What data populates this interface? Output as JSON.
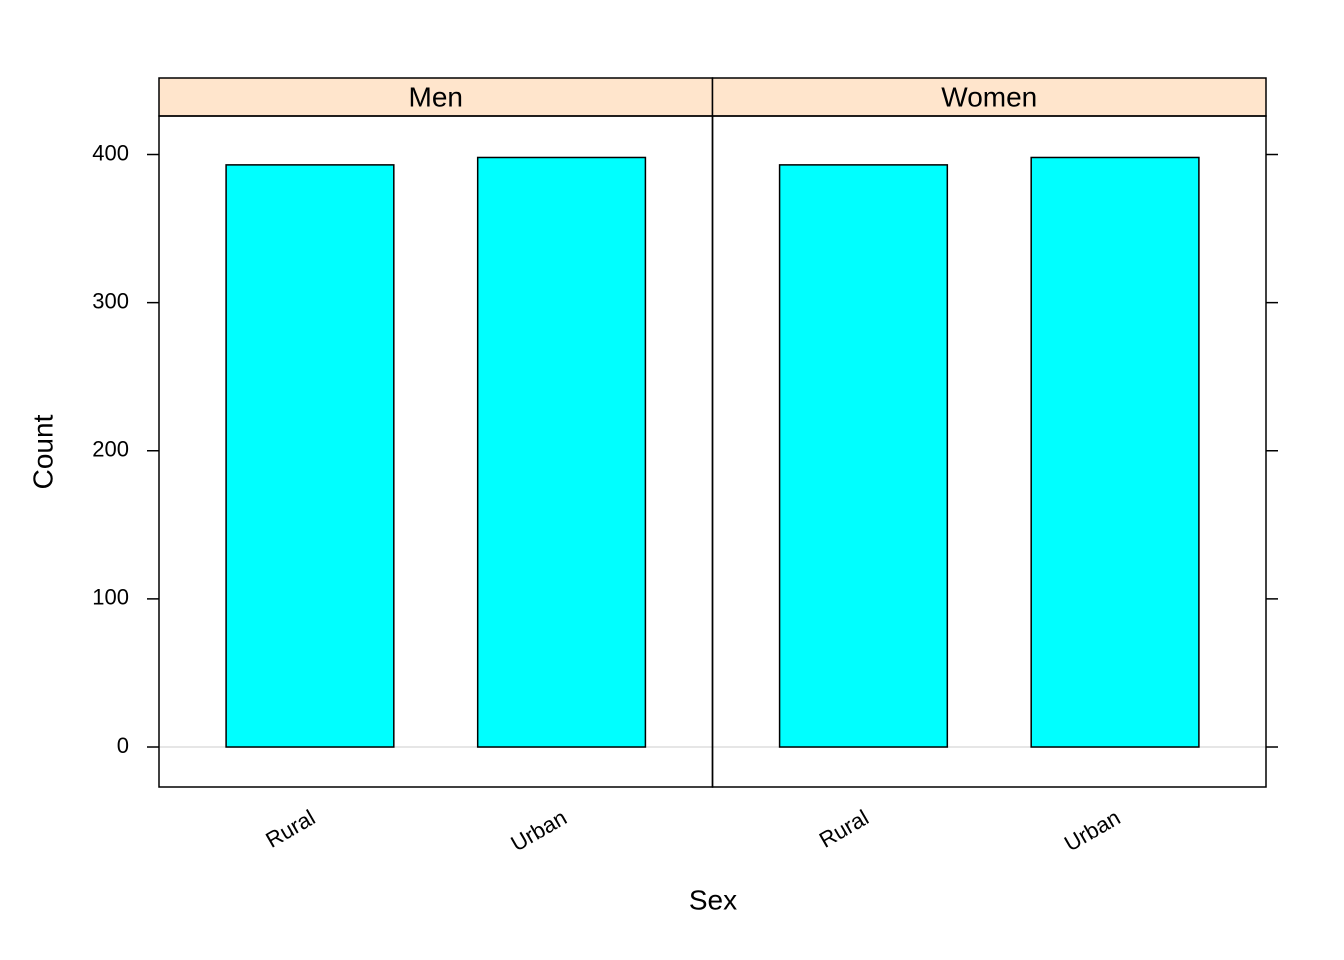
{
  "chart_data": {
    "type": "bar",
    "xlabel": "Sex",
    "ylabel": "Count",
    "categories": [
      "Rural",
      "Urban"
    ],
    "panels": [
      {
        "name": "Men",
        "values": [
          393,
          398
        ]
      },
      {
        "name": "Women",
        "values": [
          393,
          398
        ]
      }
    ],
    "color": "#00ffff",
    "strip_color": "#ffe5cc",
    "ylim": [
      -27,
      426
    ],
    "yticks": [
      0,
      100,
      200,
      300,
      400
    ]
  }
}
